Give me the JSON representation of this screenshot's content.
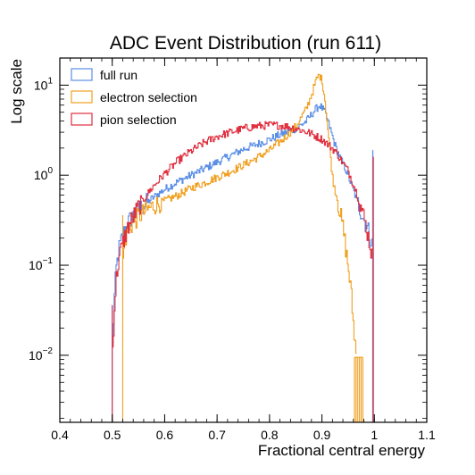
{
  "chart_data": {
    "type": "histogram",
    "title": "ADC Event Distribution (run 611)",
    "xlabel": "Fractional central energy",
    "ylabel": "Log scale",
    "xlim": [
      0.4,
      1.1
    ],
    "ylim": [
      0.0018,
      20
    ],
    "yscale": "log",
    "grid": false,
    "legend_position": "top-left",
    "x_ticks": [
      {
        "value": 0.4,
        "label": "0.4"
      },
      {
        "value": 0.5,
        "label": "0.5"
      },
      {
        "value": 0.6,
        "label": "0.6"
      },
      {
        "value": 0.7,
        "label": "0.7"
      },
      {
        "value": 0.8,
        "label": "0.8"
      },
      {
        "value": 0.9,
        "label": "0.9"
      },
      {
        "value": 1.0,
        "label": "1"
      },
      {
        "value": 1.1,
        "label": "1.1"
      }
    ],
    "y_ticks": [
      {
        "value": 0.01,
        "base": "10",
        "exp": "−2"
      },
      {
        "value": 0.1,
        "base": "10",
        "exp": "−1"
      },
      {
        "value": 1,
        "base": "10",
        "exp": "0"
      },
      {
        "value": 10,
        "base": "10",
        "exp": "1"
      }
    ],
    "series": [
      {
        "name": "full run",
        "color": "#5b8fe6",
        "points": [
          [
            0.5,
            0.012
          ],
          [
            0.503,
            0.04
          ],
          [
            0.507,
            0.09
          ],
          [
            0.512,
            0.15
          ],
          [
            0.52,
            0.22
          ],
          [
            0.53,
            0.3
          ],
          [
            0.55,
            0.42
          ],
          [
            0.575,
            0.55
          ],
          [
            0.6,
            0.7
          ],
          [
            0.625,
            0.85
          ],
          [
            0.65,
            1.0
          ],
          [
            0.675,
            1.18
          ],
          [
            0.7,
            1.4
          ],
          [
            0.725,
            1.65
          ],
          [
            0.75,
            1.95
          ],
          [
            0.775,
            2.2
          ],
          [
            0.8,
            2.5
          ],
          [
            0.825,
            2.9
          ],
          [
            0.85,
            3.3
          ],
          [
            0.87,
            4.0
          ],
          [
            0.885,
            5.2
          ],
          [
            0.895,
            6.0
          ],
          [
            0.905,
            5.0
          ],
          [
            0.915,
            3.3
          ],
          [
            0.925,
            2.1
          ],
          [
            0.935,
            1.5
          ],
          [
            0.945,
            1.15
          ],
          [
            0.955,
            0.8
          ],
          [
            0.965,
            0.55
          ],
          [
            0.975,
            0.38
          ],
          [
            0.985,
            0.27
          ],
          [
            0.99,
            0.22
          ],
          [
            0.995,
            0.17
          ]
        ],
        "spike": {
          "x": 0.997,
          "y": 1.9
        }
      },
      {
        "name": "electron selection",
        "color": "#f0a020",
        "points": [
          [
            0.52,
            0.12
          ],
          [
            0.525,
            0.2
          ],
          [
            0.53,
            0.25
          ],
          [
            0.54,
            0.3
          ],
          [
            0.55,
            0.35
          ],
          [
            0.575,
            0.45
          ],
          [
            0.6,
            0.52
          ],
          [
            0.625,
            0.6
          ],
          [
            0.65,
            0.72
          ],
          [
            0.675,
            0.82
          ],
          [
            0.7,
            0.95
          ],
          [
            0.725,
            1.1
          ],
          [
            0.75,
            1.3
          ],
          [
            0.775,
            1.55
          ],
          [
            0.8,
            1.9
          ],
          [
            0.825,
            2.5
          ],
          [
            0.85,
            3.5
          ],
          [
            0.87,
            5.5
          ],
          [
            0.88,
            8.0
          ],
          [
            0.89,
            12.0
          ],
          [
            0.895,
            13.0
          ],
          [
            0.9,
            11.0
          ],
          [
            0.905,
            7.0
          ],
          [
            0.91,
            3.5
          ],
          [
            0.915,
            1.8
          ],
          [
            0.92,
            0.9
          ],
          [
            0.93,
            0.5
          ],
          [
            0.94,
            0.25
          ],
          [
            0.95,
            0.09
          ],
          [
            0.955,
            0.05
          ],
          [
            0.96,
            0.02
          ],
          [
            0.965,
            0.01
          ]
        ],
        "noise": [
          0.962,
          0.978
        ]
      },
      {
        "name": "pion selection",
        "color": "#e03040",
        "points": [
          [
            0.5,
            0.012
          ],
          [
            0.503,
            0.03
          ],
          [
            0.507,
            0.07
          ],
          [
            0.512,
            0.12
          ],
          [
            0.52,
            0.18
          ],
          [
            0.53,
            0.27
          ],
          [
            0.55,
            0.45
          ],
          [
            0.575,
            0.72
          ],
          [
            0.6,
            1.05
          ],
          [
            0.625,
            1.45
          ],
          [
            0.65,
            1.85
          ],
          [
            0.675,
            2.3
          ],
          [
            0.7,
            2.7
          ],
          [
            0.725,
            3.0
          ],
          [
            0.75,
            3.3
          ],
          [
            0.775,
            3.5
          ],
          [
            0.8,
            3.6
          ],
          [
            0.825,
            3.55
          ],
          [
            0.85,
            3.3
          ],
          [
            0.875,
            2.95
          ],
          [
            0.9,
            2.5
          ],
          [
            0.925,
            1.85
          ],
          [
            0.95,
            1.1
          ],
          [
            0.965,
            0.65
          ],
          [
            0.975,
            0.42
          ],
          [
            0.985,
            0.25
          ],
          [
            0.99,
            0.18
          ],
          [
            0.995,
            0.13
          ]
        ],
        "spike": {
          "x": 0.998,
          "y": 1.6
        }
      }
    ]
  }
}
